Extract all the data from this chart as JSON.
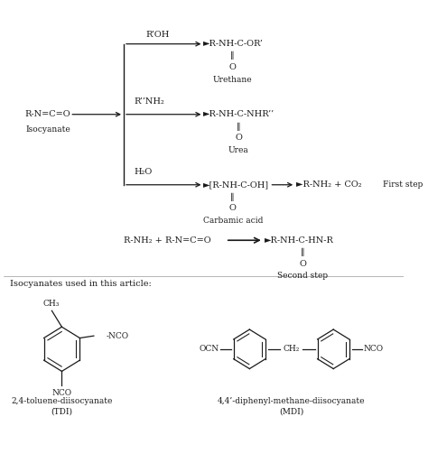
{
  "bg_color": "#ffffff",
  "text_color": "#1a1a1a",
  "fig_width": 4.74,
  "fig_height": 5.23,
  "dpi": 100,
  "fs_main": 7.0,
  "fs_small": 6.5,
  "reactions": {
    "isocyanate_label": "R-N=C=O",
    "isocyanate_sublabel": "Isocyanate",
    "reagent1": "R’OH",
    "product1": "►R-NH-C-OR’",
    "product1_bond": "∥",
    "product1_o": "O",
    "product1_name": "Urethane",
    "reagent2": "R’’NH₂",
    "product2": "►R-NH-C-NHR’’",
    "product2_bond": "∥",
    "product2_o": "O",
    "product2_name": "Urea",
    "reagent3": "H₂O",
    "product3a": "►[R-NH-C-OH]",
    "product3a_bond": "∥",
    "product3a_o": "O",
    "product3a_name": "Carbamic acid",
    "product3b": "►R-NH₂ + CO₂",
    "step3_label": "First step",
    "reaction4_left": "R-NH₂ + R-N=C=O",
    "product4": "►R-NH-C-HN-R",
    "product4_bond": "∥",
    "product4_o": "O",
    "step4_label": "Second step",
    "section_label": "Isocyanates used in this article:",
    "tdi_name": "2,4-toluene-diisocyanate",
    "tdi_abbr": "(TDI)",
    "mdi_name": "4,4’-diphenyl-methane-diisocyanate",
    "mdi_abbr": "(MDI)"
  }
}
